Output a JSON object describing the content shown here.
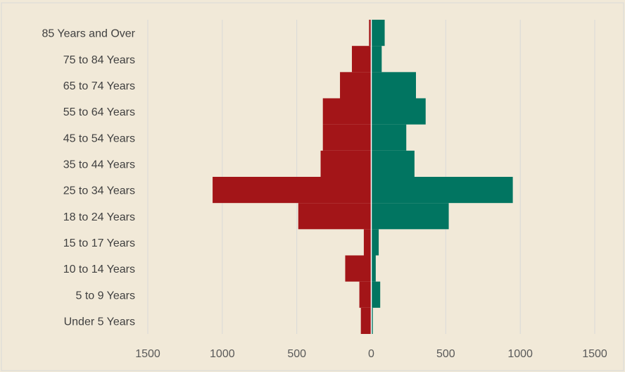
{
  "chart_data": {
    "type": "bar",
    "orientation": "horizontal",
    "layout": "population-pyramid",
    "categories": [
      "Under 5 Years",
      "5 to 9 Years",
      "10 to 14 Years",
      "15 to 17 Years",
      "18 to 24 Years",
      "25 to 34 Years",
      "35 to 44 Years",
      "45 to 54 Years",
      "55 to 64 Years",
      "65 to 74 Years",
      "75 to 84 Years",
      "85 Years and Over"
    ],
    "series": [
      {
        "side": "left",
        "color": "#a31518",
        "values": [
          70,
          80,
          175,
          50,
          490,
          1065,
          340,
          325,
          325,
          210,
          130,
          15
        ]
      },
      {
        "side": "right",
        "color": "#017561",
        "values": [
          10,
          60,
          30,
          50,
          520,
          950,
          290,
          235,
          365,
          300,
          70,
          90
        ]
      }
    ],
    "x_tick_labels": [
      "1500",
      "1000",
      "500",
      "0",
      "500",
      "1000",
      "1500"
    ],
    "xlim": [
      -1500,
      1500
    ],
    "grid": true,
    "legend": "none",
    "colors": {
      "background": "#f1e9d8",
      "grid": "#d9d9d9",
      "border": "#d9d9d9"
    }
  }
}
